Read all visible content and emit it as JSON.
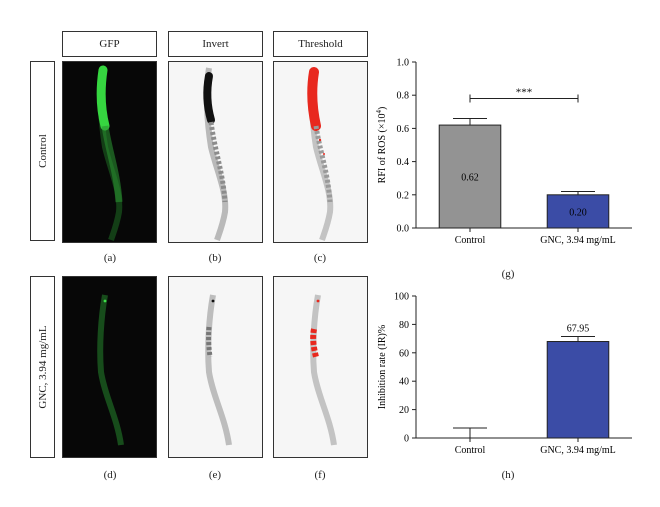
{
  "column_headers": [
    "GFP",
    "Invert",
    "Threshold"
  ],
  "row_labels": [
    "Control",
    "GNC, 3.94 mg/mL"
  ],
  "image_captions": [
    "(a)",
    "(b)",
    "(c)",
    "(d)",
    "(e)",
    "(f)"
  ],
  "chart_captions": [
    "(g)",
    "(h)"
  ],
  "colors": {
    "control_bar": "#939393",
    "gnc_bar": "#3b4ca6",
    "gfp_green": "#2fc93a",
    "threshold_red": "#e8281e"
  },
  "chart_data": [
    {
      "type": "bar",
      "categories": [
        "Control",
        "GNC, 3.94 mg/mL"
      ],
      "values": [
        0.62,
        0.2
      ],
      "error": [
        0.04,
        0.02
      ],
      "data_labels": [
        "0.62",
        "0.20"
      ],
      "ylabel": "RFI of ROS (×10⁴)",
      "ylabel_main": "RFI of ROS (×10",
      "ylabel_sup": "4",
      "ylabel_end": ")",
      "ylim": [
        0,
        1.0
      ],
      "yticks": [
        0.0,
        0.2,
        0.4,
        0.6,
        0.8,
        1.0
      ],
      "ytick_labels": [
        "0.0",
        "0.2",
        "0.4",
        "0.6",
        "0.8",
        "1.0"
      ],
      "significance": "***",
      "grid": false
    },
    {
      "type": "bar",
      "categories": [
        "Control",
        "GNC, 3.94 mg/mL"
      ],
      "values": [
        0,
        67.95
      ],
      "error": [
        7,
        3.5
      ],
      "data_labels": [
        "",
        "67.95"
      ],
      "ylabel": "Inhibition rate (IR)%",
      "ylim": [
        0,
        100
      ],
      "yticks": [
        0,
        20,
        40,
        60,
        80,
        100
      ],
      "ytick_labels": [
        "0",
        "20",
        "40",
        "60",
        "80",
        "100"
      ],
      "grid": false
    }
  ]
}
